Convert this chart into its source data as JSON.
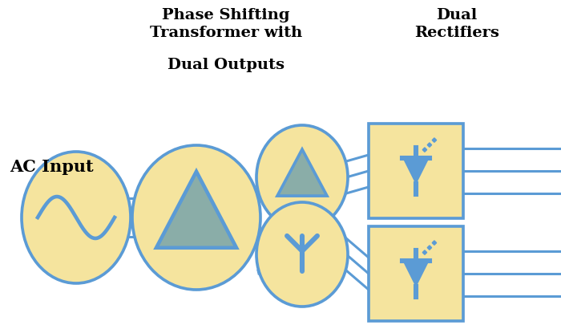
{
  "bg_color": "#ffffff",
  "circle_fill": "#f5e49e",
  "circle_edge": "#5b9bd5",
  "rect_fill": "#f5e49e",
  "rect_edge": "#5b9bd5",
  "diode_fill": "#5b9bd5",
  "line_color": "#5b9bd5",
  "triangle_fill_delta": "#8aada8",
  "triangle_edge": "#5b9bd5",
  "title1": "Phase Shifting",
  "title2": "Transformer with",
  "title3": "Dual Outputs",
  "title4": "Dual",
  "title5": "Rectifiers",
  "label_ac": "AC Input",
  "line_width": 2.2,
  "font_size_title": 14,
  "font_size_label": 15
}
